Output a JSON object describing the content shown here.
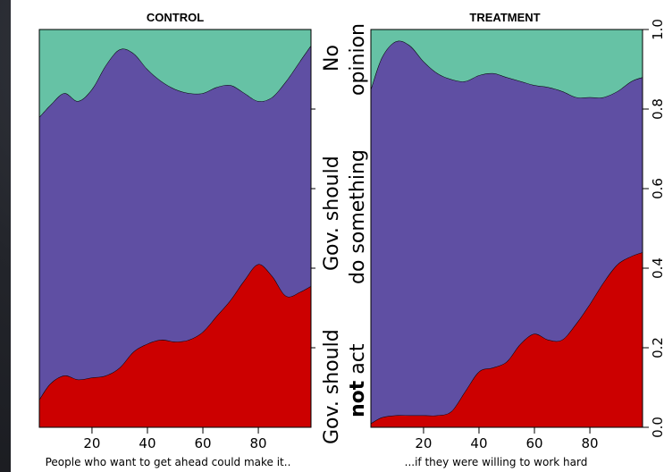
{
  "chart_data": [
    {
      "type": "area",
      "title": "CONTROL",
      "xlabel": "People who want to get ahead could make it..",
      "xlim": [
        1,
        99
      ],
      "ylim": [
        0,
        1
      ],
      "x_ticks": [
        "20",
        "40",
        "60",
        "80"
      ],
      "x": [
        1,
        5,
        10,
        15,
        20,
        25,
        30,
        35,
        40,
        45,
        50,
        55,
        60,
        65,
        70,
        75,
        80,
        85,
        90,
        95,
        99
      ],
      "series": [
        {
          "name": "Gov. should not act",
          "color": "#cc0000",
          "values": [
            0.07,
            0.11,
            0.13,
            0.12,
            0.125,
            0.13,
            0.15,
            0.19,
            0.21,
            0.22,
            0.215,
            0.22,
            0.24,
            0.28,
            0.32,
            0.37,
            0.41,
            0.38,
            0.33,
            0.34,
            0.355
          ]
        },
        {
          "name": "Gov. should do something",
          "color": "#5f4fa3",
          "values": [
            0.78,
            0.81,
            0.84,
            0.82,
            0.85,
            0.91,
            0.95,
            0.94,
            0.9,
            0.87,
            0.85,
            0.84,
            0.84,
            0.855,
            0.86,
            0.84,
            0.82,
            0.83,
            0.87,
            0.92,
            0.96
          ]
        },
        {
          "name": "No opinion",
          "color": "#66c2a5",
          "values": [
            1,
            1,
            1,
            1,
            1,
            1,
            1,
            1,
            1,
            1,
            1,
            1,
            1,
            1,
            1,
            1,
            1,
            1,
            1,
            1,
            1
          ]
        }
      ]
    },
    {
      "type": "area",
      "title": "TREATMENT",
      "xlabel": "...if they were willing to work hard",
      "xlim": [
        1,
        99
      ],
      "ylim": [
        0,
        1
      ],
      "x_ticks": [
        "20",
        "40",
        "60",
        "80"
      ],
      "y_ticks": [
        "0.0",
        "0.2",
        "0.4",
        "0.6",
        "0.8",
        "1.0"
      ],
      "x": [
        1,
        5,
        10,
        15,
        20,
        25,
        30,
        35,
        40,
        45,
        50,
        55,
        60,
        65,
        70,
        75,
        80,
        85,
        90,
        95,
        99
      ],
      "series": [
        {
          "name": "Gov. should not act",
          "color": "#cc0000",
          "values": [
            0.01,
            0.025,
            0.03,
            0.03,
            0.03,
            0.03,
            0.04,
            0.09,
            0.14,
            0.15,
            0.165,
            0.21,
            0.235,
            0.22,
            0.22,
            0.26,
            0.31,
            0.365,
            0.41,
            0.43,
            0.44
          ]
        },
        {
          "name": "Gov. should do something",
          "color": "#5f4fa3",
          "values": [
            0.85,
            0.93,
            0.97,
            0.96,
            0.92,
            0.89,
            0.875,
            0.87,
            0.885,
            0.89,
            0.88,
            0.87,
            0.86,
            0.855,
            0.845,
            0.83,
            0.83,
            0.83,
            0.845,
            0.87,
            0.88
          ]
        },
        {
          "name": "No opinion",
          "color": "#66c2a5",
          "values": [
            1,
            1,
            1,
            1,
            1,
            1,
            1,
            1,
            1,
            1,
            1,
            1,
            1,
            1,
            1,
            1,
            1,
            1,
            1,
            1,
            1
          ]
        }
      ]
    }
  ],
  "middle_labels": {
    "not_act_line1": "Gov. should",
    "not_act_bold": "not",
    "not_act_rest": " act",
    "something_line1": "Gov. should",
    "something_line2": "do something",
    "opinion_line1": "No",
    "opinion_line2": "opinion"
  }
}
